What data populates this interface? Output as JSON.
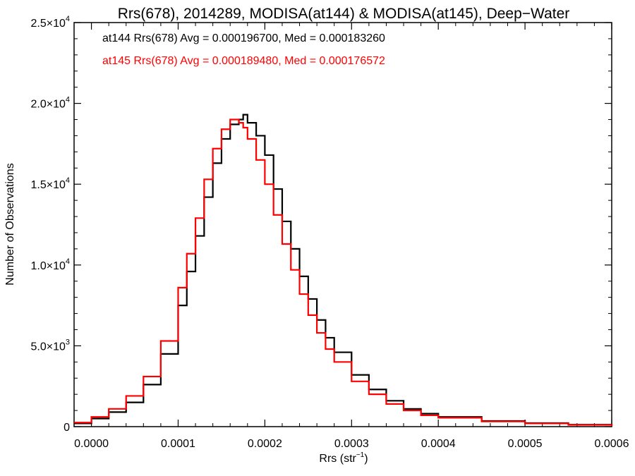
{
  "chart_data": {
    "type": "line",
    "title": "Rrs(678), 2014289, MODISA(at144) & MODISA(at145), Deep−Water",
    "xlabel": "Rrs (str",
    "xlabel_sup": "−1",
    "xlabel_suffix": ")",
    "ylabel": "Number of Observations",
    "xlim": [
      -2e-05,
      0.0006
    ],
    "ylim": [
      0,
      25000
    ],
    "x_ticks": [
      0.0,
      0.0001,
      0.0002,
      0.0003,
      0.0004,
      0.0005,
      0.0006
    ],
    "x_tick_labels": [
      "0.0000",
      "0.0001",
      "0.0002",
      "0.0003",
      "0.0004",
      "0.0005",
      "0.0006"
    ],
    "y_ticks": [
      {
        "value": 0,
        "mantissa": "0",
        "exp": ""
      },
      {
        "value": 5000,
        "mantissa": "5.0×10",
        "exp": "3"
      },
      {
        "value": 10000,
        "mantissa": "1.0×10",
        "exp": "4"
      },
      {
        "value": 15000,
        "mantissa": "1.5×10",
        "exp": "4"
      },
      {
        "value": 20000,
        "mantissa": "2.0×10",
        "exp": "4"
      },
      {
        "value": 25000,
        "mantissa": "2.5×10",
        "exp": "4"
      }
    ],
    "grid": false,
    "legend_position": "top-left",
    "series": [
      {
        "name": "at144 Rrs(678) Avg = 0.000196700, Med = 0.000183260",
        "color": "#000000",
        "x": [
          -2e-05,
          0.0,
          2e-05,
          4e-05,
          6e-05,
          8e-05,
          0.0001,
          0.00011,
          0.00012,
          0.00013,
          0.00014,
          0.00015,
          0.00016,
          0.00017,
          0.000175,
          0.00018,
          0.00019,
          0.0002,
          0.00021,
          0.00022,
          0.00023,
          0.00024,
          0.00025,
          0.00026,
          0.00027,
          0.00028,
          0.0003,
          0.00032,
          0.00034,
          0.00036,
          0.00038,
          0.0004,
          0.00045,
          0.0005,
          0.00055,
          0.0006
        ],
        "y": [
          200,
          500,
          900,
          1500,
          2600,
          4500,
          7500,
          9600,
          11800,
          14200,
          16300,
          17800,
          18700,
          19000,
          19300,
          18800,
          18000,
          16800,
          14700,
          12700,
          11000,
          9300,
          7900,
          6600,
          5500,
          4600,
          3200,
          2300,
          1600,
          1100,
          800,
          600,
          350,
          220,
          120,
          50
        ]
      },
      {
        "name": "at145 Rrs(678) Avg = 0.000189480, Med = 0.000176572",
        "color": "#ff0000",
        "x": [
          -2e-05,
          0.0,
          2e-05,
          4e-05,
          6e-05,
          8e-05,
          0.0001,
          0.00011,
          0.00012,
          0.00013,
          0.00014,
          0.00015,
          0.00016,
          0.00017,
          0.000175,
          0.00018,
          0.00019,
          0.0002,
          0.00021,
          0.00022,
          0.00023,
          0.00024,
          0.00025,
          0.00026,
          0.00027,
          0.00028,
          0.0003,
          0.00032,
          0.00034,
          0.00036,
          0.00038,
          0.0004,
          0.00045,
          0.0005,
          0.00055,
          0.0006
        ],
        "y": [
          250,
          600,
          1100,
          1900,
          3100,
          5300,
          8600,
          10700,
          12900,
          15300,
          17200,
          18400,
          19000,
          18800,
          18500,
          17800,
          16500,
          15000,
          13100,
          11300,
          9700,
          8200,
          6900,
          5800,
          4800,
          4000,
          2800,
          2000,
          1400,
          1000,
          700,
          550,
          320,
          200,
          110,
          40
        ]
      }
    ]
  }
}
